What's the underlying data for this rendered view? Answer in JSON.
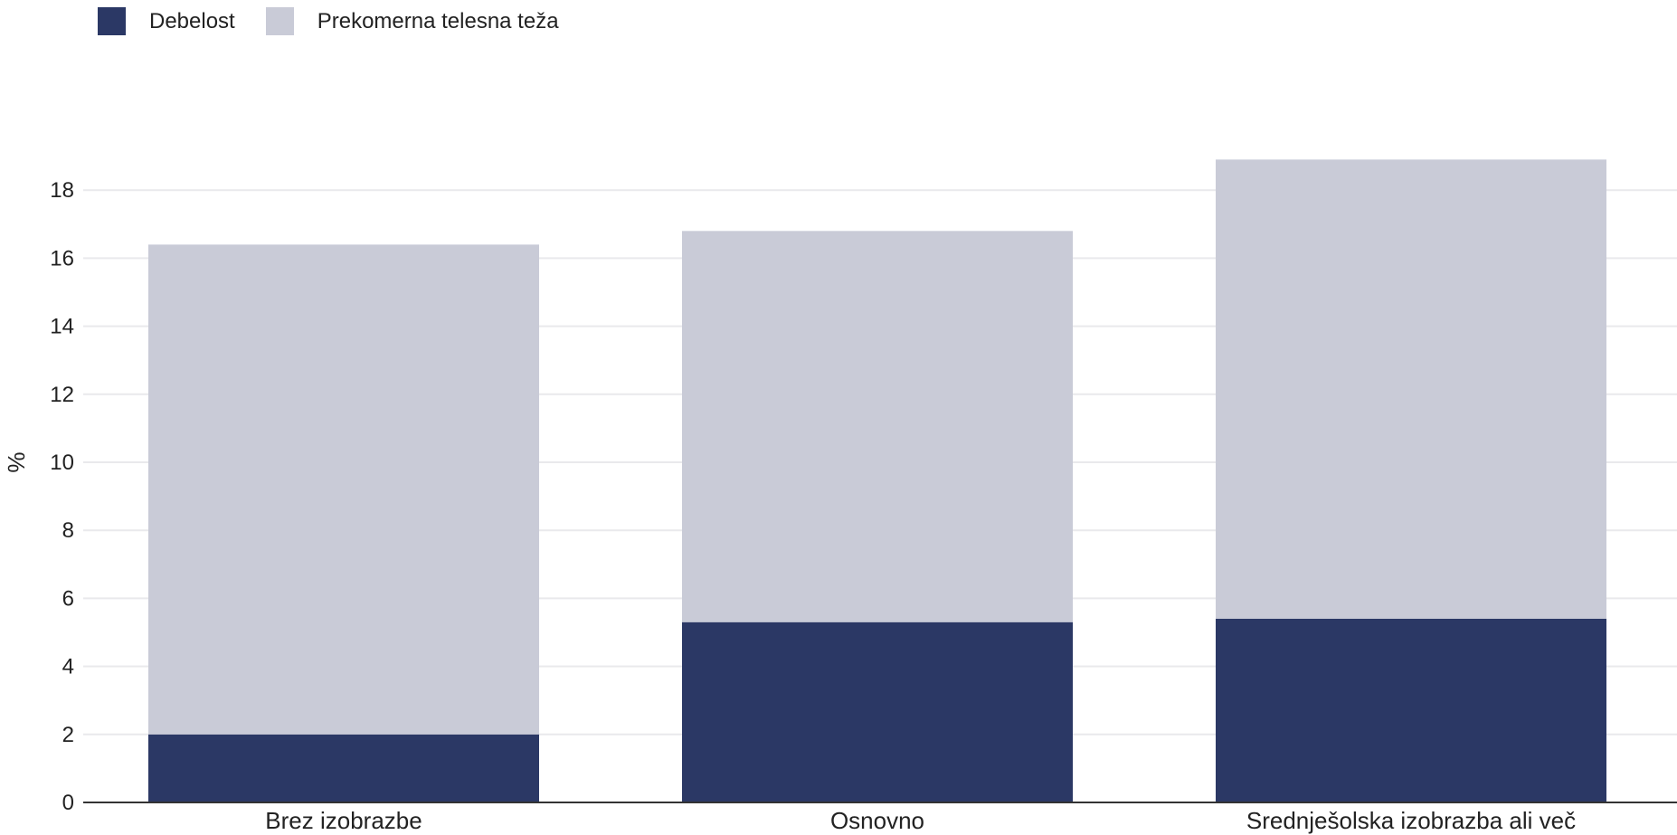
{
  "chart_data": {
    "type": "bar",
    "stacked": true,
    "title": "",
    "xlabel": "",
    "ylabel": "%",
    "ylim": [
      0,
      19
    ],
    "yticks": [
      0,
      2,
      4,
      6,
      8,
      10,
      12,
      14,
      16,
      18
    ],
    "grid": true,
    "legend_position": "top-left",
    "categories": [
      "Brez izobrazbe",
      "Osnovno",
      "Srednješolska izobrazba ali več"
    ],
    "series": [
      {
        "name": "Debelost",
        "color": "#2b3865",
        "values": [
          2.0,
          5.3,
          5.4
        ]
      },
      {
        "name": "Prekomerna telesna teža",
        "color": "#c9cbd7",
        "values": [
          14.4,
          11.5,
          13.5
        ]
      }
    ]
  }
}
